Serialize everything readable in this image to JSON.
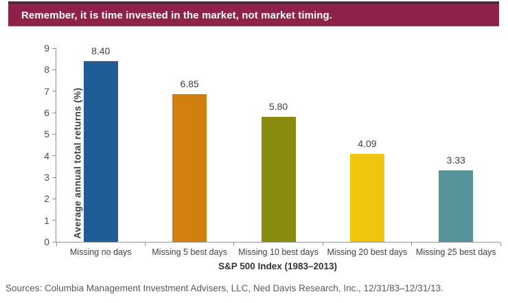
{
  "header": {
    "title": "Remember, it is time invested in the market, not market timing.",
    "background_color": "#8E2349",
    "top_border_color": "#3F2F3A",
    "text_color": "#FFFFFF"
  },
  "chart_data": {
    "type": "bar",
    "categories": [
      "Missing no days",
      "Missing 5 best days",
      "Missing 10 best days",
      "Missing 20 best days",
      "Missing 25 best days"
    ],
    "values": [
      8.4,
      6.85,
      5.8,
      4.09,
      3.33
    ],
    "value_labels": [
      "8.40",
      "6.85",
      "5.80",
      "4.09",
      "3.33"
    ],
    "bar_colors": [
      "#1F5C96",
      "#D07E0C",
      "#878C0F",
      "#EFC80D",
      "#559299"
    ],
    "title": "",
    "xlabel": "S&P 500 Index (1983–2013)",
    "ylabel": "Average annual total returns (%)",
    "ylim": [
      0,
      9
    ],
    "yticks": [
      0,
      1,
      2,
      3,
      4,
      5,
      6,
      7,
      8,
      9
    ],
    "grid": false,
    "legend": "none",
    "axis_color": "#8E8E8E",
    "tick_label_color": "#4D4D4D",
    "value_label_color": "#404040"
  },
  "footer": {
    "sources": "Sources: Columbia Management Investment Advisers, LLC, Ned Davis Research, Inc., 12/31/83–12/31/13."
  }
}
